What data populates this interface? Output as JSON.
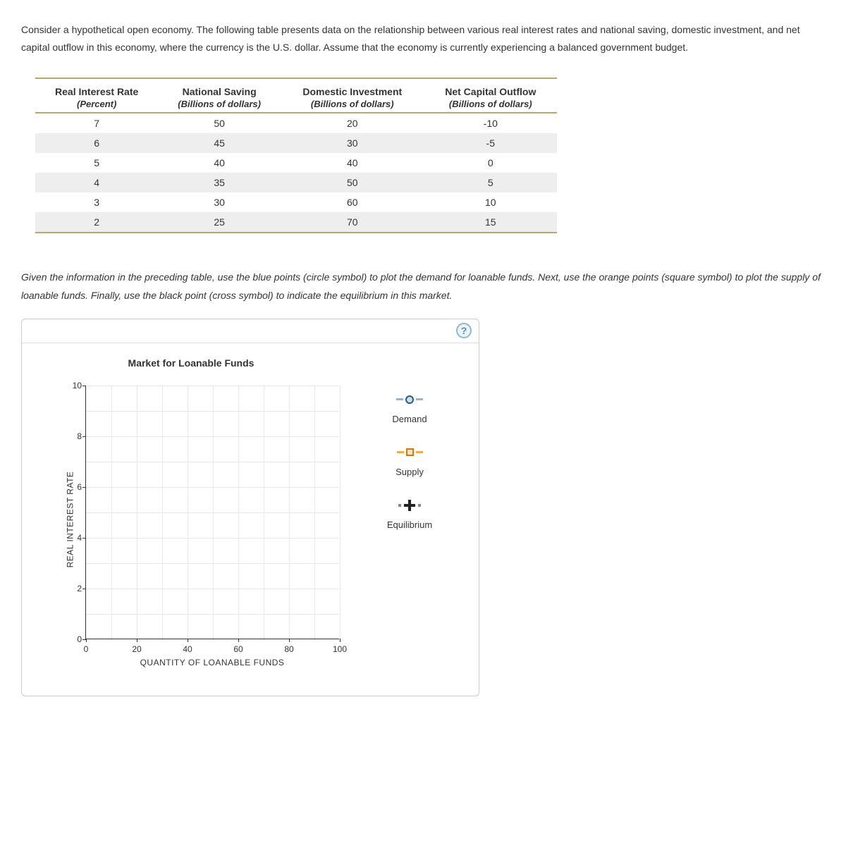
{
  "intro": "Consider a hypothetical open economy. The following table presents data on the relationship between various real interest rates and national saving, domestic investment, and net capital outflow in this economy, where the currency is the U.S. dollar. Assume that the economy is currently experiencing a balanced government budget.",
  "table": {
    "columns": [
      {
        "label": "Real Interest Rate",
        "unit": "(Percent)"
      },
      {
        "label": "National Saving",
        "unit": "(Billions of dollars)"
      },
      {
        "label": "Domestic Investment",
        "unit": "(Billions of dollars)"
      },
      {
        "label": "Net Capital Outflow",
        "unit": "(Billions of dollars)"
      }
    ],
    "rows": [
      [
        "7",
        "50",
        "20",
        "-10"
      ],
      [
        "6",
        "45",
        "30",
        "-5"
      ],
      [
        "5",
        "40",
        "40",
        "0"
      ],
      [
        "4",
        "35",
        "50",
        "5"
      ],
      [
        "3",
        "30",
        "60",
        "10"
      ],
      [
        "2",
        "25",
        "70",
        "15"
      ]
    ],
    "border_color": "#b8a869",
    "stripe_color": "#eeeeee"
  },
  "instructions": "Given the information in the preceding table, use the blue points (circle symbol) to plot the demand for loanable funds. Next, use the orange points (square symbol) to plot the supply of loanable funds. Finally, use the black point (cross symbol) to indicate the equilibrium in this market.",
  "chart": {
    "title": "Market for Loanable Funds",
    "y_axis_label": "REAL INTEREST RATE",
    "x_axis_label": "QUANTITY OF LOANABLE FUNDS",
    "xlim": [
      0,
      100
    ],
    "ylim": [
      0,
      10
    ],
    "x_ticks": [
      0,
      20,
      40,
      60,
      80,
      100
    ],
    "y_ticks": [
      0,
      2,
      4,
      6,
      8,
      10
    ],
    "x_minor_step": 10,
    "y_minor_step": 1,
    "grid_color": "#e8e8e8",
    "axis_color": "#333333",
    "background_color": "#ffffff"
  },
  "legend": {
    "demand": {
      "label": "Demand",
      "color": "#2e5a7a",
      "fill": "#cfe0ed",
      "dash": "#92b7d4",
      "symbol": "circle"
    },
    "supply": {
      "label": "Supply",
      "color": "#c97a1e",
      "fill": "#fbe3c2",
      "dash": "#f7a94a",
      "symbol": "square"
    },
    "equilibrium": {
      "label": "Equilibrium",
      "color": "#222222",
      "symbol": "cross"
    }
  },
  "help_tooltip": "?"
}
